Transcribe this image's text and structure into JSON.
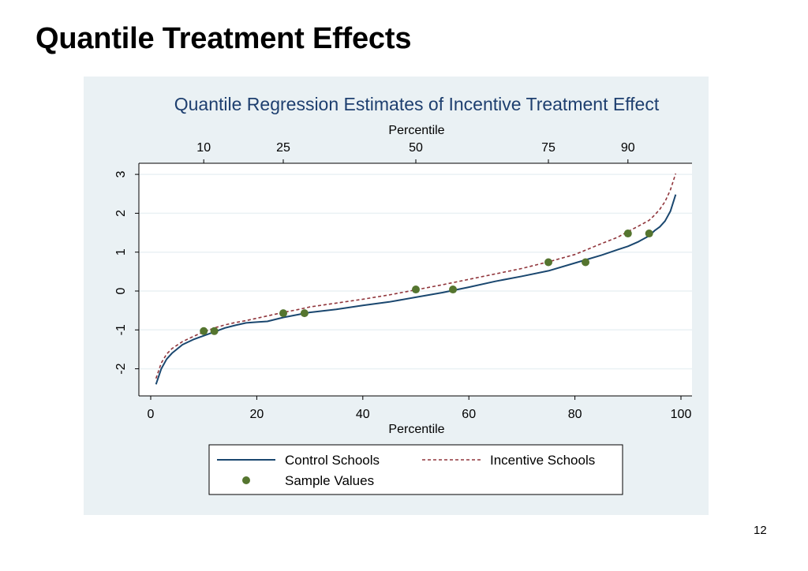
{
  "slide": {
    "title": "Quantile Treatment Effects",
    "page_number": "12"
  },
  "chart_data": {
    "type": "line",
    "title": "Quantile Regression Estimates of Incentive Treatment Effect",
    "xlabel": "Percentile",
    "ylabel": "",
    "top_axis_label": "Percentile",
    "xlim": [
      0,
      100
    ],
    "ylim": [
      -2.6,
      3.3
    ],
    "x_ticks": [
      0,
      20,
      40,
      60,
      80,
      100
    ],
    "y_ticks": [
      -2,
      -1,
      0,
      1,
      2,
      3
    ],
    "top_ticks": [
      10,
      25,
      50,
      75,
      90
    ],
    "grid": true,
    "colors": {
      "Control Schools": "#1a476f",
      "Incentive Schools": "#90353b",
      "Sample Values": "#55752f",
      "panel_background": "#eaf1f4",
      "title_color": "#1e3f6f"
    },
    "series": [
      {
        "name": "Control Schools",
        "style": "solid",
        "x": [
          1,
          2,
          3,
          4,
          6,
          8,
          10,
          12,
          14,
          16,
          18,
          20,
          22,
          25,
          28,
          30,
          35,
          40,
          45,
          50,
          55,
          60,
          65,
          70,
          75,
          80,
          85,
          88,
          90,
          92,
          94,
          95,
          96,
          97,
          98,
          99
        ],
        "y": [
          -2.4,
          -2.0,
          -1.75,
          -1.6,
          -1.38,
          -1.25,
          -1.15,
          -1.05,
          -0.95,
          -0.88,
          -0.82,
          -0.8,
          -0.78,
          -0.68,
          -0.6,
          -0.55,
          -0.47,
          -0.37,
          -0.28,
          -0.16,
          -0.04,
          0.1,
          0.25,
          0.38,
          0.52,
          0.72,
          0.92,
          1.06,
          1.15,
          1.27,
          1.42,
          1.55,
          1.65,
          1.8,
          2.05,
          2.48
        ]
      },
      {
        "name": "Incentive Schools",
        "style": "dashed",
        "x": [
          1,
          2,
          3,
          4,
          6,
          8,
          10,
          12,
          14,
          16,
          18,
          20,
          22,
          25,
          28,
          30,
          35,
          40,
          45,
          50,
          55,
          60,
          65,
          70,
          75,
          80,
          85,
          88,
          90,
          92,
          94,
          95,
          96,
          97,
          98,
          99
        ],
        "y": [
          -2.25,
          -1.85,
          -1.62,
          -1.48,
          -1.3,
          -1.17,
          -1.05,
          -0.95,
          -0.87,
          -0.81,
          -0.76,
          -0.7,
          -0.64,
          -0.55,
          -0.47,
          -0.41,
          -0.31,
          -0.21,
          -0.1,
          0.03,
          0.16,
          0.3,
          0.44,
          0.58,
          0.75,
          0.94,
          1.22,
          1.38,
          1.53,
          1.67,
          1.82,
          1.95,
          2.1,
          2.3,
          2.6,
          3.02
        ]
      },
      {
        "name": "Sample Values",
        "style": "markers",
        "x": [
          10,
          12,
          25,
          29,
          50,
          57,
          75,
          82,
          90,
          94
        ],
        "y": [
          -1.03,
          -1.03,
          -0.57,
          -0.57,
          0.04,
          0.04,
          0.74,
          0.74,
          1.48,
          1.48
        ]
      }
    ],
    "legend": {
      "placement": "bottom",
      "entries": [
        "Control Schools",
        "Incentive Schools",
        "Sample Values"
      ]
    }
  }
}
